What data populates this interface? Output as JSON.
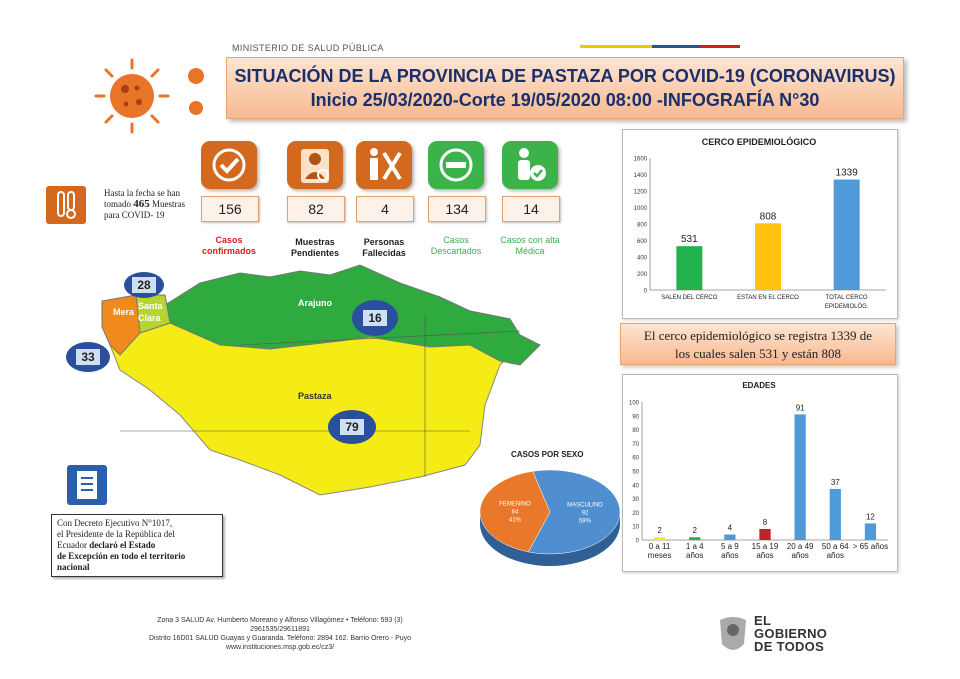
{
  "header": {
    "ministry": "MINISTERIO DE SALUD PÚBLICA",
    "title_line1": "SITUACIÓN DE LA PROVINCIA DE PASTAZA POR COVID-19 (CORONAVIRUS)",
    "title_line2": "Inicio 25/03/2020-Corte 19/05/2020 08:00 -INFOGRAFÍA N°30"
  },
  "tests": {
    "prefix": "Hasta la fecha se han tomado",
    "count": "465",
    "suffix": "Muestras para COVID- 19"
  },
  "stats": [
    {
      "value": "156",
      "label_line1": "Casos",
      "label_line2": "confirmados",
      "color": "#d62020",
      "icon_bg": "#d2691e",
      "icon": "check-icon"
    },
    {
      "value": "82",
      "label_line1": "Muestras",
      "label_line2": "Pendientes",
      "color": "#222222",
      "icon_bg": "#d2691e",
      "icon": "doctor-icon"
    },
    {
      "value": "4",
      "label_line1": "Personas",
      "label_line2": "Fallecidas",
      "color": "#222222",
      "icon_bg": "#d2691e",
      "icon": "person-cross-icon"
    },
    {
      "value": "134",
      "label_line1": "Casos",
      "label_line2": "Descartados",
      "color": "#3bb24a",
      "icon_bg": "#3bb24a",
      "icon": "minus-icon"
    },
    {
      "value": "14",
      "label_line1": "Casos con alta",
      "label_line2": "Médica",
      "color": "#3bb24a",
      "icon_bg": "#3bb24a",
      "icon": "discharge-icon"
    }
  ],
  "map": {
    "regions": {
      "arajuno": "Arajuno",
      "mera": "Mera",
      "santa_clara_1": "Santa",
      "santa_clara_2": "Clara",
      "pastaza": "Pastaza"
    },
    "bubbles": {
      "santa_clara": "28",
      "mera": "33",
      "arajuno": "16",
      "pastaza": "79"
    },
    "colors": {
      "arajuno": "#2eaa3e",
      "pastaza": "#f5ec15",
      "mera": "#f08a1c",
      "santa_clara": "#b7d435"
    }
  },
  "decree": {
    "line1": "Con Decreto Ejecutivo N°1017,",
    "line2": "el Presidente de la República del",
    "line3a": "Ecuador ",
    "line3b": "declaró el Estado",
    "line4": "de Excepción en todo el territorio",
    "line5": "nacional"
  },
  "cerco_summary": {
    "line1": "El cerco epidemiológico se registra 1339 de",
    "line2": "los cuales salen 531 y están 808"
  },
  "footer": {
    "line1": "Zona 3 SALUD Av. Humberto Moreano y Alfonso Villagómez • Teléfono: 593 (3)",
    "line2": "2961535/29611891",
    "line3": "Distrito 16D01 SALUD Guayas y Guaranda. Teléfono: 2894 162. Barrio Orero - Puyo",
    "line4": "www.instituciones.msp.gob.ec/cz3/"
  },
  "gov_logo": {
    "line1": "EL",
    "line2": "GOBIERNO",
    "line3": "DE TODOS"
  },
  "chart_data": [
    {
      "type": "bar",
      "title": "CERCO  EPIDEMIOLÓGICO",
      "categories": [
        "SALEN DEL CERCO",
        "ESTAN EN EL CERCO",
        "TOTAL  CERCO EPIDEMIOLÓG."
      ],
      "values": [
        531,
        808,
        1339
      ],
      "colors": [
        "#22b14c",
        "#ffc20e",
        "#4f9bd9"
      ],
      "ylim": [
        0,
        1600
      ],
      "yticks": [
        0,
        200,
        400,
        600,
        800,
        1000,
        1200,
        1400,
        1600
      ],
      "grid": false
    },
    {
      "type": "bar",
      "title": "EDADES",
      "categories": [
        "0 a 11 meses",
        "1 a 4 años",
        "5 a 9 años",
        "15 a 19 años",
        "20 a 49 años",
        "50 a 64 años",
        "> 65 años"
      ],
      "values": [
        2,
        2,
        4,
        8,
        91,
        37,
        12
      ],
      "colors": [
        "#f5ec15",
        "#22b14c",
        "#4f9bd9",
        "#c0202a",
        "#4f9bd9",
        "#4f9bd9",
        "#4f9bd9"
      ],
      "ylim": [
        0,
        100
      ],
      "yticks": [
        0,
        10,
        20,
        30,
        40,
        50,
        60,
        70,
        80,
        90,
        100
      ],
      "grid": false
    },
    {
      "type": "pie",
      "title": "CASOS POR SEXO",
      "slices": [
        {
          "label": "MASCULINO",
          "value": 92,
          "percent": "59%",
          "color": "#4f8fd0"
        },
        {
          "label": "FEMENINO",
          "value": 64,
          "percent": "41%",
          "color": "#e9782a"
        }
      ]
    }
  ]
}
